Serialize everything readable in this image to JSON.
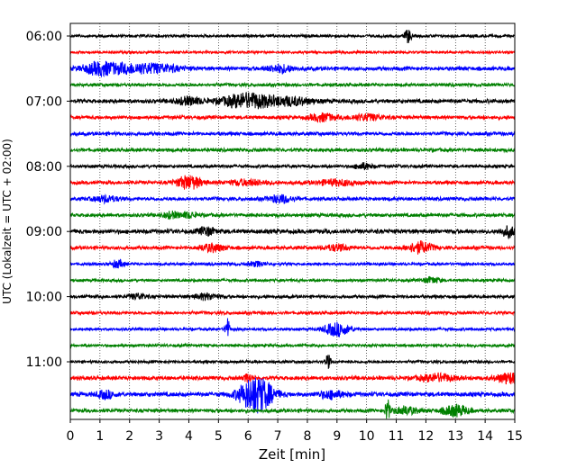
{
  "chart_data": {
    "type": "line",
    "subtype": "helicorder",
    "title": "",
    "xlabel": "Zeit  [min]",
    "ylabel": "UTC (Lokalzeit = UTC + 02:00)",
    "xlim": [
      0,
      15
    ],
    "x_ticks": [
      "0",
      "1",
      "2",
      "3",
      "4",
      "5",
      "6",
      "7",
      "8",
      "9",
      "10",
      "11",
      "12",
      "13",
      "14",
      "15"
    ],
    "y_tick_labels": [
      "06:00",
      "07:00",
      "08:00",
      "09:00",
      "10:00",
      "11:00"
    ],
    "y_tick_rows": [
      0,
      4,
      8,
      12,
      16,
      20
    ],
    "trace_interval_min": 15,
    "x_grid": true,
    "x_grid_style": "dotted",
    "colors": [
      "#000000",
      "#ff0000",
      "#0000ff",
      "#008000"
    ],
    "rows": [
      {
        "start": "06:00",
        "color": "#000000",
        "base": 0.35,
        "events": [
          {
            "t": 11.4,
            "amp": 1.8,
            "dur": 0.08
          }
        ]
      },
      {
        "start": "06:15",
        "color": "#ff0000",
        "base": 0.32,
        "events": []
      },
      {
        "start": "06:30",
        "color": "#0000ff",
        "base": 0.5,
        "events": [
          {
            "t": 1.0,
            "amp": 1.6,
            "dur": 0.4
          },
          {
            "t": 2.0,
            "amp": 1.0,
            "dur": 0.5
          },
          {
            "t": 3.0,
            "amp": 1.0,
            "dur": 0.5
          },
          {
            "t": 7.1,
            "amp": 1.0,
            "dur": 0.3
          }
        ]
      },
      {
        "start": "06:45",
        "color": "#008000",
        "base": 0.4,
        "events": []
      },
      {
        "start": "07:00",
        "color": "#000000",
        "base": 0.5,
        "events": [
          {
            "t": 4.0,
            "amp": 1.0,
            "dur": 0.3
          },
          {
            "t": 6.0,
            "amp": 2.0,
            "dur": 0.6
          },
          {
            "t": 7.5,
            "amp": 1.0,
            "dur": 0.5
          }
        ]
      },
      {
        "start": "07:15",
        "color": "#ff0000",
        "base": 0.45,
        "events": [
          {
            "t": 8.5,
            "amp": 1.0,
            "dur": 0.3
          },
          {
            "t": 10.0,
            "amp": 0.8,
            "dur": 0.4
          }
        ]
      },
      {
        "start": "07:30",
        "color": "#0000ff",
        "base": 0.45,
        "events": []
      },
      {
        "start": "07:45",
        "color": "#008000",
        "base": 0.45,
        "events": []
      },
      {
        "start": "08:00",
        "color": "#000000",
        "base": 0.4,
        "events": [
          {
            "t": 9.9,
            "amp": 0.8,
            "dur": 0.2
          }
        ]
      },
      {
        "start": "08:15",
        "color": "#ff0000",
        "base": 0.45,
        "events": [
          {
            "t": 4.0,
            "amp": 1.8,
            "dur": 0.3
          },
          {
            "t": 6.0,
            "amp": 0.7,
            "dur": 0.5
          },
          {
            "t": 9.0,
            "amp": 0.7,
            "dur": 0.5
          }
        ]
      },
      {
        "start": "08:30",
        "color": "#0000ff",
        "base": 0.45,
        "events": [
          {
            "t": 1.2,
            "amp": 0.8,
            "dur": 0.3
          },
          {
            "t": 7.1,
            "amp": 1.0,
            "dur": 0.3
          }
        ]
      },
      {
        "start": "08:45",
        "color": "#008000",
        "base": 0.45,
        "events": [
          {
            "t": 3.4,
            "amp": 0.8,
            "dur": 0.2
          },
          {
            "t": 4.0,
            "amp": 0.7,
            "dur": 0.2
          }
        ]
      },
      {
        "start": "09:00",
        "color": "#000000",
        "base": 0.55,
        "events": [
          {
            "t": 4.6,
            "amp": 1.0,
            "dur": 0.2
          },
          {
            "t": 14.8,
            "amp": 1.3,
            "dur": 0.2
          }
        ]
      },
      {
        "start": "09:15",
        "color": "#ff0000",
        "base": 0.45,
        "events": [
          {
            "t": 4.8,
            "amp": 1.0,
            "dur": 0.3
          },
          {
            "t": 9.0,
            "amp": 0.8,
            "dur": 0.3
          },
          {
            "t": 11.8,
            "amp": 1.5,
            "dur": 0.3
          }
        ]
      },
      {
        "start": "09:30",
        "color": "#0000ff",
        "base": 0.35,
        "events": [
          {
            "t": 1.6,
            "amp": 1.0,
            "dur": 0.15
          },
          {
            "t": 6.3,
            "amp": 0.6,
            "dur": 0.2
          }
        ]
      },
      {
        "start": "09:45",
        "color": "#008000",
        "base": 0.35,
        "events": [
          {
            "t": 12.2,
            "amp": 0.8,
            "dur": 0.2
          }
        ]
      },
      {
        "start": "10:00",
        "color": "#000000",
        "base": 0.4,
        "events": [
          {
            "t": 2.3,
            "amp": 0.8,
            "dur": 0.2
          },
          {
            "t": 4.6,
            "amp": 0.8,
            "dur": 0.3
          }
        ]
      },
      {
        "start": "10:15",
        "color": "#ff0000",
        "base": 0.4,
        "events": []
      },
      {
        "start": "10:30",
        "color": "#0000ff",
        "base": 0.35,
        "events": [
          {
            "t": 5.3,
            "amp": 3.2,
            "dur": 0.05
          },
          {
            "t": 9.0,
            "amp": 1.8,
            "dur": 0.3
          }
        ]
      },
      {
        "start": "10:45",
        "color": "#008000",
        "base": 0.35,
        "events": []
      },
      {
        "start": "11:00",
        "color": "#000000",
        "base": 0.35,
        "events": [
          {
            "t": 8.7,
            "amp": 2.0,
            "dur": 0.06
          }
        ]
      },
      {
        "start": "11:15",
        "color": "#ff0000",
        "base": 0.5,
        "events": [
          {
            "t": 6.0,
            "amp": 1.0,
            "dur": 0.1
          },
          {
            "t": 12.4,
            "amp": 1.0,
            "dur": 0.4
          },
          {
            "t": 14.8,
            "amp": 1.4,
            "dur": 0.3
          }
        ]
      },
      {
        "start": "11:30",
        "color": "#0000ff",
        "base": 0.55,
        "events": [
          {
            "t": 1.2,
            "amp": 1.0,
            "dur": 0.2
          },
          {
            "t": 6.0,
            "amp": 2.0,
            "dur": 0.3
          },
          {
            "t": 6.4,
            "amp": 3.8,
            "dur": 0.35
          },
          {
            "t": 8.8,
            "amp": 1.0,
            "dur": 0.3
          }
        ]
      },
      {
        "start": "11:45",
        "color": "#008000",
        "base": 0.45,
        "events": [
          {
            "t": 10.7,
            "amp": 3.2,
            "dur": 0.05
          },
          {
            "t": 11.3,
            "amp": 1.0,
            "dur": 0.3
          },
          {
            "t": 13.0,
            "amp": 1.5,
            "dur": 0.3
          }
        ]
      }
    ]
  }
}
